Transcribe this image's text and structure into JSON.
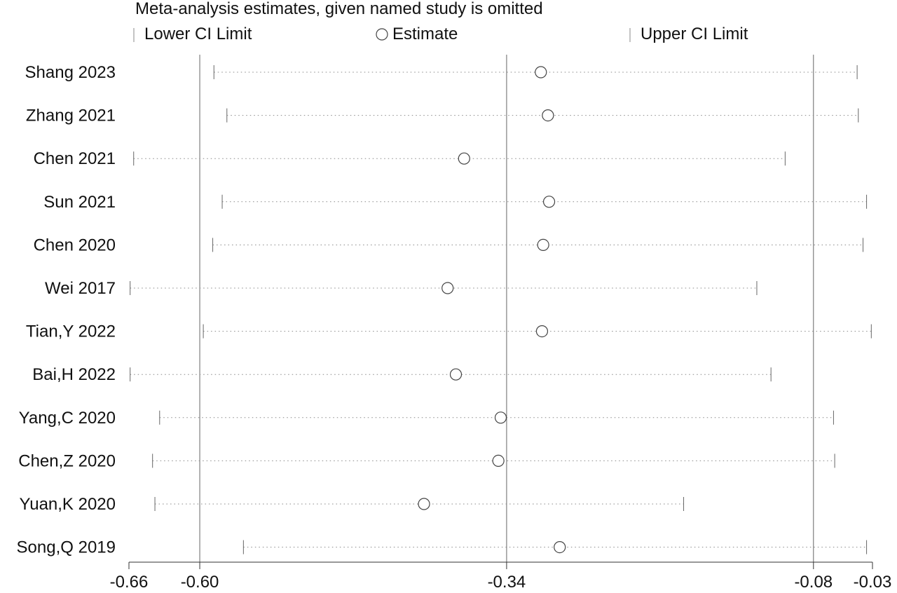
{
  "chart_data": {
    "type": "forest",
    "title": "Meta-analysis estimates, given named study is omitted",
    "legend": {
      "placement": "top",
      "items": [
        {
          "key": "lower",
          "label": "Lower CI Limit",
          "marker": "vertical-tick"
        },
        {
          "key": "estimate",
          "label": "Estimate",
          "marker": "open-circle"
        },
        {
          "key": "upper",
          "label": "Upper CI Limit",
          "marker": "vertical-tick"
        }
      ]
    },
    "xlim": [
      -0.66,
      -0.03
    ],
    "x_ticks": [
      -0.66,
      -0.6,
      -0.34,
      -0.08,
      -0.03
    ],
    "x_tick_labels": [
      "-0.66",
      "-0.60",
      "-0.34",
      "-0.08",
      "-0.03"
    ],
    "reference_lines": [
      -0.6,
      -0.34,
      -0.08
    ],
    "studies": [
      {
        "name": "Shang 2023",
        "lower": -0.588,
        "estimate": -0.311,
        "upper": -0.043
      },
      {
        "name": "Zhang 2021",
        "lower": -0.577,
        "estimate": -0.305,
        "upper": -0.042
      },
      {
        "name": "Chen 2021",
        "lower": -0.656,
        "estimate": -0.376,
        "upper": -0.104
      },
      {
        "name": "Sun 2021",
        "lower": -0.581,
        "estimate": -0.304,
        "upper": -0.035
      },
      {
        "name": "Chen 2020",
        "lower": -0.589,
        "estimate": -0.309,
        "upper": -0.038
      },
      {
        "name": "Wei 2017",
        "lower": -0.659,
        "estimate": -0.39,
        "upper": -0.128
      },
      {
        "name": "Tian,Y 2022",
        "lower": -0.597,
        "estimate": -0.31,
        "upper": -0.031
      },
      {
        "name": "Bai,H 2022",
        "lower": -0.659,
        "estimate": -0.383,
        "upper": -0.116
      },
      {
        "name": "Yang,C 2020",
        "lower": -0.634,
        "estimate": -0.345,
        "upper": -0.063
      },
      {
        "name": "Chen,Z 2020",
        "lower": -0.64,
        "estimate": -0.347,
        "upper": -0.062
      },
      {
        "name": "Yuan,K 2020",
        "lower": -0.638,
        "estimate": -0.41,
        "upper": -0.19
      },
      {
        "name": "Song,Q 2019",
        "lower": -0.563,
        "estimate": -0.295,
        "upper": -0.035
      }
    ],
    "colors": {
      "axis": "#333333",
      "ref_line": "#666666",
      "dotted": "#888888",
      "marker": "#444444"
    }
  }
}
